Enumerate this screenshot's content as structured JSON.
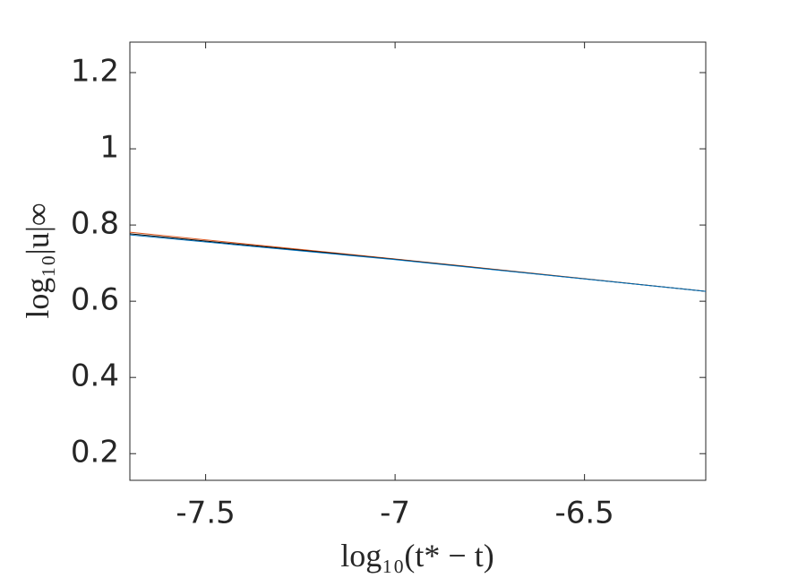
{
  "chart_data": {
    "type": "line",
    "x": [
      -7.7,
      -7,
      -6.18
    ],
    "series": [
      {
        "color": "#d95319",
        "values": [
          0.781,
          0.711,
          0.626
        ]
      },
      {
        "color": "#000000",
        "values": [
          0.777,
          0.71,
          0.626
        ]
      },
      {
        "color": "#0072bd",
        "values": [
          0.774,
          0.709,
          0.626
        ]
      }
    ],
    "xlabel": "log₁₀(t* − t)",
    "ylabel": "log₁₀|u|∞",
    "xlim": [
      -7.7,
      -6.18
    ],
    "xticks": [
      -7.5,
      -7,
      -6.5
    ],
    "ylim": [
      0.13,
      1.28
    ],
    "yticks": [
      0.2,
      0.4,
      0.6,
      0.8,
      1,
      1.2
    ],
    "grid": false
  }
}
